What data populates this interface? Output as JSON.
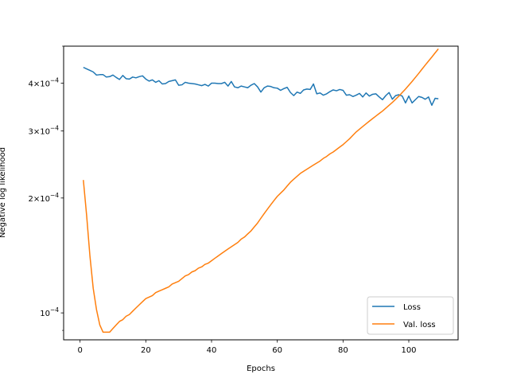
{
  "chart_data": {
    "type": "line",
    "xlabel": "Epochs",
    "ylabel": "Negative log likelihood",
    "yscale": "log",
    "xlim": [
      -5,
      115
    ],
    "ylim": [
      8.5e-05,
      0.0005
    ],
    "x_ticks": [
      0,
      20,
      40,
      60,
      80,
      100
    ],
    "y_ticks": [
      {
        "value": 0.0001,
        "base": "10",
        "exp": "−4",
        "mant": ""
      },
      {
        "value": 0.0002,
        "base": "10",
        "exp": "−4",
        "mant": "2×"
      },
      {
        "value": 0.0003,
        "base": "10",
        "exp": "−4",
        "mant": "3×"
      },
      {
        "value": 0.0004,
        "base": "10",
        "exp": "−4",
        "mant": "4×"
      }
    ],
    "y_minor_ticks": [
      9e-05,
      0.0005
    ],
    "legend_position": "lower-right",
    "grid": false,
    "series": [
      {
        "name": "Loss",
        "color": "#1f77b4",
        "x": [
          1,
          2,
          3,
          4,
          5,
          6,
          7,
          8,
          9,
          10,
          11,
          12,
          13,
          14,
          15,
          16,
          17,
          18,
          19,
          20,
          21,
          22,
          23,
          24,
          25,
          26,
          27,
          28,
          29,
          30,
          31,
          32,
          33,
          34,
          35,
          36,
          37,
          38,
          39,
          40,
          41,
          42,
          43,
          44,
          45,
          46,
          47,
          48,
          49,
          50,
          51,
          52,
          53,
          54,
          55,
          56,
          57,
          58,
          59,
          60,
          61,
          62,
          63,
          64,
          65,
          66,
          67,
          68,
          69,
          70,
          71,
          72,
          73,
          74,
          75,
          76,
          77,
          78,
          79,
          80,
          81,
          82,
          83,
          84,
          85,
          86,
          87,
          88,
          89,
          90,
          91,
          92,
          93,
          94,
          95,
          96,
          97,
          98,
          99,
          100,
          101,
          102,
          103,
          104,
          105,
          106,
          107,
          108,
          109
        ],
        "values": [
          0.00044,
          0.000436,
          0.000432,
          0.000428,
          0.00042,
          0.000421,
          0.000421,
          0.000415,
          0.000416,
          0.00042,
          0.000414,
          0.000409,
          0.000419,
          0.000411,
          0.00041,
          0.000415,
          0.000413,
          0.000416,
          0.000418,
          0.00041,
          0.000405,
          0.000408,
          0.000402,
          0.000406,
          0.000398,
          0.000399,
          0.000404,
          0.000406,
          0.000408,
          0.000395,
          0.000396,
          0.000402,
          0.0004,
          0.000399,
          0.000398,
          0.000396,
          0.000394,
          0.000397,
          0.000393,
          0.0004,
          0.0004,
          0.000399,
          0.000399,
          0.000402,
          0.000393,
          0.000404,
          0.000391,
          0.000389,
          0.000393,
          0.000391,
          0.000389,
          0.000395,
          0.000399,
          0.000391,
          0.000379,
          0.000389,
          0.000393,
          0.000392,
          0.000389,
          0.000388,
          0.000383,
          0.000387,
          0.00039,
          0.000378,
          0.000371,
          0.000379,
          0.000376,
          0.000384,
          0.000386,
          0.000385,
          0.000398,
          0.000375,
          0.000377,
          0.000372,
          0.000375,
          0.00038,
          0.000384,
          0.000382,
          0.000385,
          0.000383,
          0.000372,
          0.000373,
          0.000369,
          0.000372,
          0.000376,
          0.000368,
          0.000377,
          0.00037,
          0.000374,
          0.000375,
          0.000368,
          0.000362,
          0.000371,
          0.000378,
          0.000363,
          0.000371,
          0.000373,
          0.00037,
          0.000355,
          0.00037,
          0.000355,
          0.000362,
          0.000369,
          0.000367,
          0.000363,
          0.000368,
          0.00035,
          0.000365,
          0.000364
        ]
      },
      {
        "name": "Val. loss",
        "color": "#ff7f0e",
        "x": [
          1,
          2,
          3,
          4,
          5,
          6,
          7,
          8,
          9,
          10,
          11,
          12,
          13,
          14,
          15,
          16,
          17,
          18,
          19,
          20,
          21,
          22,
          23,
          24,
          25,
          26,
          27,
          28,
          29,
          30,
          31,
          32,
          33,
          34,
          35,
          36,
          37,
          38,
          39,
          40,
          41,
          42,
          43,
          44,
          45,
          46,
          47,
          48,
          49,
          50,
          51,
          52,
          53,
          54,
          55,
          56,
          57,
          58,
          59,
          60,
          61,
          62,
          63,
          64,
          65,
          66,
          67,
          68,
          69,
          70,
          71,
          72,
          73,
          74,
          75,
          76,
          77,
          78,
          79,
          80,
          81,
          82,
          83,
          84,
          85,
          86,
          87,
          88,
          89,
          90,
          91,
          92,
          93,
          94,
          95,
          96,
          97,
          98,
          99,
          100,
          101,
          102,
          103,
          104,
          105,
          106,
          107,
          108,
          109
        ],
        "values": [
          0.000223,
          0.00018,
          0.000141,
          0.000116,
          0.000102,
          9.3e-05,
          8.9e-05,
          8.9e-05,
          8.9e-05,
          9.1e-05,
          9.3e-05,
          9.5e-05,
          9.6e-05,
          9.8e-05,
          9.9e-05,
          0.000101,
          0.000103,
          0.000105,
          0.000107,
          0.000109,
          0.00011,
          0.000111,
          0.000113,
          0.000114,
          0.000115,
          0.000116,
          0.000117,
          0.000119,
          0.00012,
          0.000121,
          0.000123,
          0.000125,
          0.000126,
          0.000128,
          0.000129,
          0.000131,
          0.000132,
          0.000134,
          0.000135,
          0.000137,
          0.000139,
          0.000141,
          0.000143,
          0.000145,
          0.000147,
          0.000149,
          0.000151,
          0.000153,
          0.000156,
          0.000158,
          0.000161,
          0.000164,
          0.000168,
          0.000172,
          0.000177,
          0.000182,
          0.000187,
          0.000192,
          0.000197,
          0.000202,
          0.000206,
          0.00021,
          0.000215,
          0.00022,
          0.000224,
          0.000228,
          0.000232,
          0.000235,
          0.000238,
          0.000241,
          0.000244,
          0.000247,
          0.00025,
          0.000254,
          0.000257,
          0.000261,
          0.000264,
          0.000268,
          0.000272,
          0.000276,
          0.000281,
          0.000286,
          0.000292,
          0.000298,
          0.000303,
          0.000308,
          0.000313,
          0.000318,
          0.000323,
          0.000328,
          0.000333,
          0.000338,
          0.000344,
          0.00035,
          0.000356,
          0.000363,
          0.00037,
          0.000378,
          0.000386,
          0.000395,
          0.000404,
          0.000414,
          0.000424,
          0.000435,
          0.000446,
          0.000457,
          0.000468,
          0.00048,
          0.000492
        ]
      }
    ]
  }
}
